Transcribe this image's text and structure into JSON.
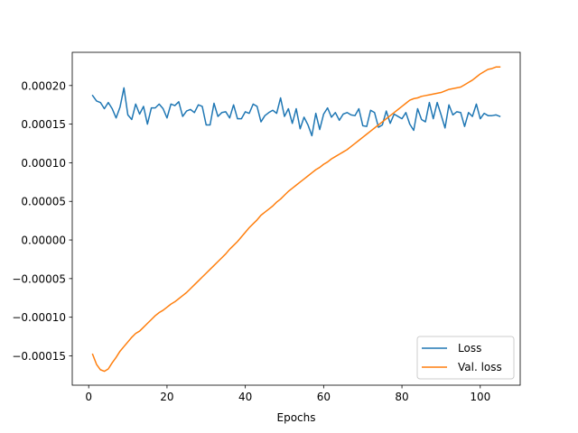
{
  "chart_data": {
    "type": "line",
    "title": "",
    "xlabel": "Epochs",
    "ylabel": "",
    "xlim": [
      -4.2,
      110.2
    ],
    "ylim": [
      -0.000188,
      0.000243
    ],
    "xticks": [
      0,
      20,
      40,
      60,
      80,
      100
    ],
    "xtick_labels": [
      "0",
      "20",
      "40",
      "60",
      "80",
      "100"
    ],
    "yticks": [
      -0.00015,
      -0.0001,
      -5e-05,
      0.0,
      5e-05,
      0.0001,
      0.00015,
      0.0002
    ],
    "ytick_labels": [
      "−0.00015",
      "−0.00010",
      "−0.00005",
      "0.00000",
      "0.00005",
      "0.00010",
      "0.00015",
      "0.00020"
    ],
    "grid": false,
    "legend_position": "lower-right",
    "series": [
      {
        "name": "Loss",
        "color": "#1f77b4",
        "x": [
          1,
          2,
          3,
          4,
          5,
          6,
          7,
          8,
          9,
          10,
          11,
          12,
          13,
          14,
          15,
          16,
          17,
          18,
          19,
          20,
          21,
          22,
          23,
          24,
          25,
          26,
          27,
          28,
          29,
          30,
          31,
          32,
          33,
          34,
          35,
          36,
          37,
          38,
          39,
          40,
          41,
          42,
          43,
          44,
          45,
          46,
          47,
          48,
          49,
          50,
          51,
          52,
          53,
          54,
          55,
          56,
          57,
          58,
          59,
          60,
          61,
          62,
          63,
          64,
          65,
          66,
          67,
          68,
          69,
          70,
          71,
          72,
          73,
          74,
          75,
          76,
          77,
          78,
          79,
          80,
          81,
          82,
          83,
          84,
          85,
          86,
          87,
          88,
          89,
          90,
          91,
          92,
          93,
          94,
          95,
          96,
          97,
          98,
          99,
          100,
          101,
          102,
          103,
          104,
          105
        ],
        "y": [
          0.000187,
          0.00018,
          0.000178,
          0.00017,
          0.000178,
          0.00017,
          0.000158,
          0.000172,
          0.000197,
          0.000162,
          0.000156,
          0.000176,
          0.000163,
          0.000173,
          0.00015,
          0.000171,
          0.000171,
          0.000176,
          0.00017,
          0.000158,
          0.000176,
          0.000174,
          0.000179,
          0.00016,
          0.000167,
          0.000169,
          0.000165,
          0.000175,
          0.000173,
          0.000149,
          0.000149,
          0.000177,
          0.00016,
          0.000165,
          0.000166,
          0.000158,
          0.000175,
          0.000157,
          0.000157,
          0.000166,
          0.000164,
          0.000176,
          0.000173,
          0.000153,
          0.000161,
          0.000165,
          0.000168,
          0.000164,
          0.000184,
          0.00016,
          0.00017,
          0.000151,
          0.00017,
          0.000144,
          0.000159,
          0.000149,
          0.000135,
          0.000164,
          0.000143,
          0.000163,
          0.000171,
          0.000159,
          0.000165,
          0.000155,
          0.000163,
          0.000165,
          0.000162,
          0.000161,
          0.00017,
          0.000148,
          0.000147,
          0.000168,
          0.000165,
          0.000146,
          0.000149,
          0.000167,
          0.000151,
          0.000163,
          0.00016,
          0.000157,
          0.000165,
          0.00015,
          0.000142,
          0.00017,
          0.000156,
          0.000153,
          0.000178,
          0.000157,
          0.000178,
          0.000162,
          0.000145,
          0.000175,
          0.000162,
          0.000166,
          0.000165,
          0.000147,
          0.000165,
          0.00016,
          0.000176,
          0.000157,
          0.000164,
          0.000161,
          0.000161,
          0.000162,
          0.00016
        ]
      },
      {
        "name": "Val. loss",
        "color": "#ff7f0e",
        "x": [
          1,
          2,
          3,
          4,
          5,
          6,
          7,
          8,
          9,
          10,
          11,
          12,
          13,
          14,
          15,
          16,
          17,
          18,
          19,
          20,
          21,
          22,
          23,
          24,
          25,
          26,
          27,
          28,
          29,
          30,
          31,
          32,
          33,
          34,
          35,
          36,
          37,
          38,
          39,
          40,
          41,
          42,
          43,
          44,
          45,
          46,
          47,
          48,
          49,
          50,
          51,
          52,
          53,
          54,
          55,
          56,
          57,
          58,
          59,
          60,
          61,
          62,
          63,
          64,
          65,
          66,
          67,
          68,
          69,
          70,
          71,
          72,
          73,
          74,
          75,
          76,
          77,
          78,
          79,
          80,
          81,
          82,
          83,
          84,
          85,
          86,
          87,
          88,
          89,
          90,
          91,
          92,
          93,
          94,
          95,
          96,
          97,
          98,
          99,
          100,
          101,
          102,
          103,
          104,
          105
        ],
        "y": [
          -0.000148,
          -0.000161,
          -0.000168,
          -0.00017,
          -0.000167,
          -0.000159,
          -0.000152,
          -0.000144,
          -0.000138,
          -0.000132,
          -0.000126,
          -0.000121,
          -0.000118,
          -0.000113,
          -0.000108,
          -0.000103,
          -9.8e-05,
          -9.4e-05,
          -9.1e-05,
          -8.7e-05,
          -8.3e-05,
          -8e-05,
          -7.6e-05,
          -7.2e-05,
          -6.8e-05,
          -6.3e-05,
          -5.8e-05,
          -5.3e-05,
          -4.8e-05,
          -4.3e-05,
          -3.8e-05,
          -3.3e-05,
          -2.8e-05,
          -2.3e-05,
          -1.8e-05,
          -1.2e-05,
          -7e-06,
          -2e-06,
          4e-06,
          1e-05,
          1.6e-05,
          2.1e-05,
          2.6e-05,
          3.2e-05,
          3.6e-05,
          4e-05,
          4.4e-05,
          4.9e-05,
          5.3e-05,
          5.8e-05,
          6.3e-05,
          6.7e-05,
          7.1e-05,
          7.5e-05,
          7.9e-05,
          8.3e-05,
          8.7e-05,
          9.1e-05,
          9.4e-05,
          9.8e-05,
          0.000101,
          0.000105,
          0.000108,
          0.000111,
          0.000114,
          0.000117,
          0.000121,
          0.000125,
          0.000129,
          0.000133,
          0.000137,
          0.000141,
          0.000145,
          0.000149,
          0.000153,
          0.000157,
          0.000161,
          0.000165,
          0.000169,
          0.000173,
          0.000177,
          0.000181,
          0.000183,
          0.000184,
          0.000186,
          0.000187,
          0.000188,
          0.000189,
          0.00019,
          0.000191,
          0.000193,
          0.000195,
          0.000196,
          0.000197,
          0.000198,
          0.000201,
          0.000204,
          0.000207,
          0.000211,
          0.000215,
          0.000218,
          0.000221,
          0.000222,
          0.000224,
          0.000224
        ]
      }
    ]
  }
}
